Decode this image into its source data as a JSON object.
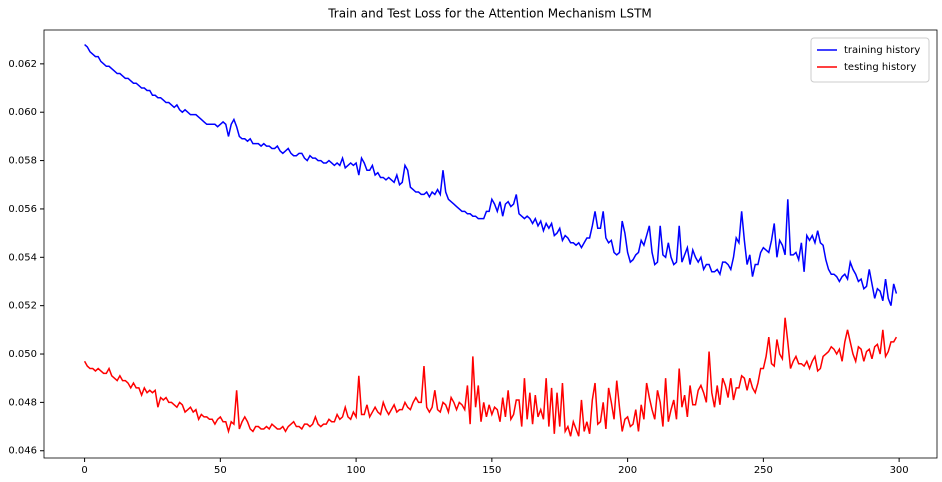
{
  "chart_data": {
    "type": "line",
    "title": "Train and Test Loss for the Attention Mechanism LSTM",
    "x": [
      0,
      1,
      2,
      3,
      4,
      5,
      6,
      7,
      8,
      9,
      10,
      11,
      12,
      13,
      14,
      15,
      16,
      17,
      18,
      19,
      20,
      21,
      22,
      23,
      24,
      25,
      26,
      27,
      28,
      29,
      30,
      31,
      32,
      33,
      34,
      35,
      36,
      37,
      38,
      39,
      40,
      41,
      42,
      43,
      44,
      45,
      46,
      47,
      48,
      49,
      50,
      51,
      52,
      53,
      54,
      55,
      56,
      57,
      58,
      59,
      60,
      61,
      62,
      63,
      64,
      65,
      66,
      67,
      68,
      69,
      70,
      71,
      72,
      73,
      74,
      75,
      76,
      77,
      78,
      79,
      80,
      81,
      82,
      83,
      84,
      85,
      86,
      87,
      88,
      89,
      90,
      91,
      92,
      93,
      94,
      95,
      96,
      97,
      98,
      99,
      100,
      101,
      102,
      103,
      104,
      105,
      106,
      107,
      108,
      109,
      110,
      111,
      112,
      113,
      114,
      115,
      116,
      117,
      118,
      119,
      120,
      121,
      122,
      123,
      124,
      125,
      126,
      127,
      128,
      129,
      130,
      131,
      132,
      133,
      134,
      135,
      136,
      137,
      138,
      139,
      140,
      141,
      142,
      143,
      144,
      145,
      146,
      147,
      148,
      149,
      150,
      151,
      152,
      153,
      154,
      155,
      156,
      157,
      158,
      159,
      160,
      161,
      162,
      163,
      164,
      165,
      166,
      167,
      168,
      169,
      170,
      171,
      172,
      173,
      174,
      175,
      176,
      177,
      178,
      179,
      180,
      181,
      182,
      183,
      184,
      185,
      186,
      187,
      188,
      189,
      190,
      191,
      192,
      193,
      194,
      195,
      196,
      197,
      198,
      199,
      200,
      201,
      202,
      203,
      204,
      205,
      206,
      207,
      208,
      209,
      210,
      211,
      212,
      213,
      214,
      215,
      216,
      217,
      218,
      219,
      220,
      221,
      222,
      223,
      224,
      225,
      226,
      227,
      228,
      229,
      230,
      231,
      232,
      233,
      234,
      235,
      236,
      237,
      238,
      239,
      240,
      241,
      242,
      243,
      244,
      245,
      246,
      247,
      248,
      249,
      250,
      251,
      252,
      253,
      254,
      255,
      256,
      257,
      258,
      259,
      260,
      261,
      262,
      263,
      264,
      265,
      266,
      267,
      268,
      269,
      270,
      271,
      272,
      273,
      274,
      275,
      276,
      277,
      278,
      279,
      280,
      281,
      282,
      283,
      284,
      285,
      286,
      287,
      288,
      289,
      290,
      291,
      292,
      293,
      294,
      295,
      296,
      297,
      298,
      299
    ],
    "series": [
      {
        "name": "training history",
        "color": "#0000ff",
        "values": [
          0.0628,
          0.0627,
          0.0625,
          0.0624,
          0.0623,
          0.0623,
          0.0621,
          0.062,
          0.0619,
          0.0619,
          0.0618,
          0.0617,
          0.0616,
          0.0616,
          0.0615,
          0.0614,
          0.0614,
          0.0613,
          0.0612,
          0.0612,
          0.0611,
          0.061,
          0.061,
          0.0609,
          0.0609,
          0.0607,
          0.0607,
          0.0606,
          0.0606,
          0.0605,
          0.0604,
          0.0604,
          0.0603,
          0.0602,
          0.0603,
          0.0601,
          0.06,
          0.0601,
          0.06,
          0.0599,
          0.0599,
          0.0599,
          0.0598,
          0.0597,
          0.0596,
          0.0595,
          0.0595,
          0.0595,
          0.0595,
          0.0594,
          0.0595,
          0.0596,
          0.0595,
          0.059,
          0.0595,
          0.0597,
          0.0594,
          0.059,
          0.0589,
          0.0589,
          0.0588,
          0.0589,
          0.0587,
          0.0587,
          0.0587,
          0.0586,
          0.0587,
          0.0586,
          0.0586,
          0.0585,
          0.0585,
          0.0586,
          0.0584,
          0.0583,
          0.0584,
          0.0585,
          0.0583,
          0.0582,
          0.0582,
          0.0583,
          0.0583,
          0.0581,
          0.058,
          0.0582,
          0.0581,
          0.0581,
          0.058,
          0.058,
          0.0579,
          0.0579,
          0.058,
          0.0579,
          0.0578,
          0.0579,
          0.0578,
          0.0581,
          0.0577,
          0.0578,
          0.0579,
          0.0578,
          0.0579,
          0.0574,
          0.0581,
          0.0579,
          0.0576,
          0.0576,
          0.0578,
          0.0574,
          0.0575,
          0.0573,
          0.0573,
          0.0572,
          0.0573,
          0.0572,
          0.0571,
          0.0574,
          0.057,
          0.0571,
          0.0578,
          0.0576,
          0.0569,
          0.0568,
          0.0567,
          0.0567,
          0.0566,
          0.0566,
          0.0567,
          0.0565,
          0.0567,
          0.0566,
          0.0568,
          0.0566,
          0.0576,
          0.0567,
          0.0564,
          0.0563,
          0.0562,
          0.0561,
          0.056,
          0.0559,
          0.0559,
          0.0558,
          0.0558,
          0.0557,
          0.0557,
          0.0556,
          0.0556,
          0.0556,
          0.0559,
          0.0559,
          0.0564,
          0.0562,
          0.0559,
          0.0563,
          0.0557,
          0.0562,
          0.0563,
          0.0561,
          0.0562,
          0.0566,
          0.0558,
          0.0557,
          0.0556,
          0.0557,
          0.0556,
          0.0554,
          0.0556,
          0.0553,
          0.0555,
          0.0551,
          0.0554,
          0.0552,
          0.0554,
          0.0549,
          0.055,
          0.0552,
          0.0547,
          0.0549,
          0.0548,
          0.0546,
          0.0546,
          0.0545,
          0.0546,
          0.0544,
          0.0546,
          0.0548,
          0.0548,
          0.0553,
          0.0559,
          0.0552,
          0.0552,
          0.0559,
          0.0548,
          0.0546,
          0.0547,
          0.0542,
          0.0541,
          0.0542,
          0.0555,
          0.055,
          0.0542,
          0.0538,
          0.0539,
          0.0541,
          0.0542,
          0.0547,
          0.0545,
          0.0549,
          0.0553,
          0.0542,
          0.0537,
          0.0538,
          0.0553,
          0.0541,
          0.054,
          0.0546,
          0.054,
          0.0537,
          0.0538,
          0.0553,
          0.0538,
          0.0541,
          0.0544,
          0.0537,
          0.0543,
          0.054,
          0.0538,
          0.054,
          0.0535,
          0.0537,
          0.0537,
          0.0534,
          0.0534,
          0.0535,
          0.0533,
          0.0538,
          0.0538,
          0.0537,
          0.0535,
          0.054,
          0.0548,
          0.0546,
          0.0559,
          0.0547,
          0.0537,
          0.0541,
          0.0532,
          0.0537,
          0.0537,
          0.0542,
          0.0544,
          0.0543,
          0.0542,
          0.0547,
          0.0554,
          0.054,
          0.0547,
          0.0545,
          0.0541,
          0.0564,
          0.0541,
          0.0541,
          0.0542,
          0.0539,
          0.0546,
          0.0534,
          0.0549,
          0.0547,
          0.0549,
          0.0546,
          0.0551,
          0.0546,
          0.0545,
          0.0539,
          0.0535,
          0.0533,
          0.0533,
          0.0532,
          0.053,
          0.0532,
          0.0533,
          0.0531,
          0.0538,
          0.0535,
          0.0533,
          0.053,
          0.0531,
          0.0527,
          0.0528,
          0.0535,
          0.0529,
          0.0523,
          0.0527,
          0.0526,
          0.0522,
          0.0531,
          0.0523,
          0.052,
          0.0529,
          0.0525
        ]
      },
      {
        "name": "testing history",
        "color": "#ff0000",
        "values": [
          0.0497,
          0.0495,
          0.0494,
          0.0494,
          0.0493,
          0.0494,
          0.0493,
          0.0492,
          0.0492,
          0.0494,
          0.0491,
          0.049,
          0.0489,
          0.0491,
          0.0489,
          0.0489,
          0.0488,
          0.0486,
          0.0488,
          0.0486,
          0.0486,
          0.0483,
          0.0486,
          0.0484,
          0.0485,
          0.0484,
          0.0485,
          0.0478,
          0.0482,
          0.0481,
          0.0482,
          0.048,
          0.048,
          0.0479,
          0.0478,
          0.048,
          0.0479,
          0.0476,
          0.0477,
          0.0478,
          0.0476,
          0.0477,
          0.0473,
          0.0475,
          0.0474,
          0.0474,
          0.0473,
          0.0473,
          0.0471,
          0.0473,
          0.0474,
          0.0472,
          0.0472,
          0.0468,
          0.0472,
          0.0471,
          0.0485,
          0.0469,
          0.0472,
          0.0474,
          0.0472,
          0.0469,
          0.0468,
          0.047,
          0.047,
          0.0469,
          0.0469,
          0.047,
          0.0469,
          0.0471,
          0.047,
          0.0469,
          0.0469,
          0.047,
          0.0468,
          0.047,
          0.0471,
          0.0472,
          0.047,
          0.047,
          0.0469,
          0.0471,
          0.0471,
          0.047,
          0.0471,
          0.0474,
          0.0471,
          0.047,
          0.0471,
          0.0471,
          0.0473,
          0.0472,
          0.0472,
          0.0475,
          0.0473,
          0.0474,
          0.0478,
          0.0474,
          0.0473,
          0.0476,
          0.0474,
          0.0491,
          0.0475,
          0.0475,
          0.0479,
          0.0474,
          0.0476,
          0.0478,
          0.0476,
          0.0475,
          0.048,
          0.0477,
          0.0475,
          0.0477,
          0.0479,
          0.0476,
          0.0477,
          0.0477,
          0.048,
          0.0478,
          0.0477,
          0.048,
          0.0482,
          0.048,
          0.048,
          0.0495,
          0.0478,
          0.0476,
          0.0478,
          0.0485,
          0.0477,
          0.0476,
          0.048,
          0.0479,
          0.0476,
          0.0482,
          0.048,
          0.0477,
          0.048,
          0.0479,
          0.0477,
          0.0487,
          0.0471,
          0.0499,
          0.0478,
          0.0487,
          0.0472,
          0.048,
          0.0474,
          0.0479,
          0.0475,
          0.0478,
          0.0477,
          0.0472,
          0.0482,
          0.0474,
          0.0485,
          0.0473,
          0.0475,
          0.0481,
          0.0481,
          0.047,
          0.049,
          0.0473,
          0.0484,
          0.0471,
          0.0483,
          0.0474,
          0.0477,
          0.0473,
          0.049,
          0.047,
          0.0486,
          0.0467,
          0.0484,
          0.047,
          0.0488,
          0.0468,
          0.047,
          0.0466,
          0.0472,
          0.0469,
          0.0466,
          0.0481,
          0.0468,
          0.0472,
          0.0467,
          0.0481,
          0.0488,
          0.0471,
          0.0472,
          0.048,
          0.0469,
          0.0486,
          0.048,
          0.0473,
          0.0489,
          0.0478,
          0.0468,
          0.0473,
          0.0474,
          0.047,
          0.0471,
          0.0477,
          0.0468,
          0.0479,
          0.0473,
          0.0488,
          0.0482,
          0.0477,
          0.0473,
          0.0485,
          0.048,
          0.047,
          0.049,
          0.0472,
          0.0477,
          0.0481,
          0.0473,
          0.0494,
          0.0478,
          0.0483,
          0.0474,
          0.0487,
          0.0479,
          0.0479,
          0.0485,
          0.0487,
          0.0484,
          0.048,
          0.0501,
          0.0484,
          0.0478,
          0.0487,
          0.0479,
          0.049,
          0.0487,
          0.0482,
          0.049,
          0.0481,
          0.0486,
          0.0486,
          0.0491,
          0.049,
          0.0485,
          0.049,
          0.0486,
          0.0484,
          0.0488,
          0.0494,
          0.0494,
          0.0499,
          0.0507,
          0.0496,
          0.0495,
          0.0506,
          0.05,
          0.0498,
          0.0515,
          0.0505,
          0.0494,
          0.0497,
          0.0499,
          0.0496,
          0.0496,
          0.0495,
          0.0497,
          0.0494,
          0.0497,
          0.0499,
          0.0493,
          0.0494,
          0.0499,
          0.05,
          0.0501,
          0.0503,
          0.0502,
          0.05,
          0.0502,
          0.0497,
          0.0505,
          0.051,
          0.0505,
          0.05,
          0.0497,
          0.0503,
          0.0502,
          0.0497,
          0.0501,
          0.0502,
          0.0498,
          0.0503,
          0.0504,
          0.05,
          0.051,
          0.0499,
          0.0501,
          0.0505,
          0.0505,
          0.0507
        ]
      }
    ],
    "xlim": [
      -14.95,
      313.95
    ],
    "xticks": [
      0,
      50,
      100,
      150,
      200,
      250,
      300
    ],
    "ylim": [
      0.0457,
      0.0634
    ],
    "yticks": [
      0.046,
      0.048,
      {
        "value": 0.05,
        "label": "0.050"
      },
      0.052,
      0.054,
      0.056,
      0.058,
      {
        "value": 0.06,
        "label": "0.060"
      },
      0.062
    ],
    "legend": "upper right",
    "grid": false
  }
}
